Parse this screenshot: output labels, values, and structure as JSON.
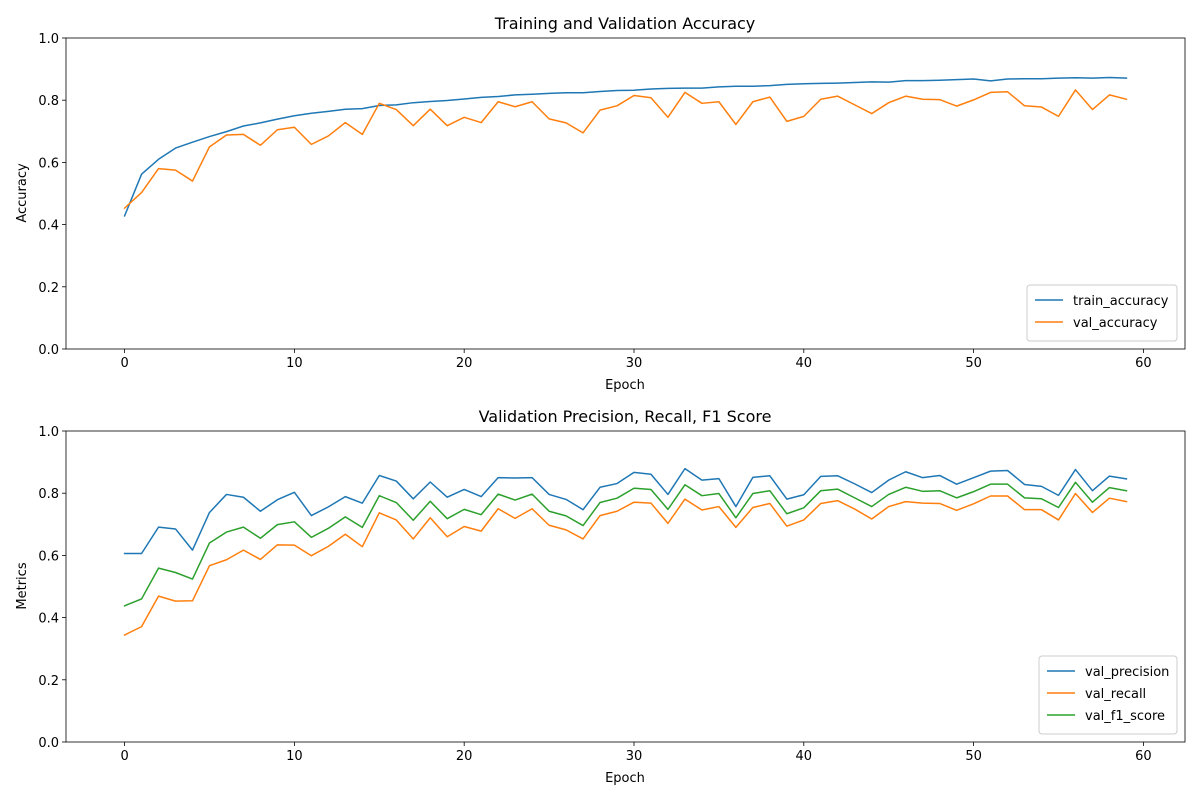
{
  "chart_data": [
    {
      "type": "line",
      "title": "Training and Validation Accuracy",
      "xlabel": "Epoch",
      "ylabel": "Accuracy",
      "xlim": [
        -3.45,
        62.45
      ],
      "ylim": [
        0,
        1.0
      ],
      "xticks": [
        0,
        10,
        20,
        30,
        40,
        50,
        60
      ],
      "yticks": [
        0.0,
        0.2,
        0.4,
        0.6,
        0.8,
        1.0
      ],
      "xtick_labels": [
        "0",
        "10",
        "20",
        "30",
        "40",
        "50",
        "60"
      ],
      "ytick_labels": [
        "0.0",
        "0.2",
        "0.4",
        "0.6",
        "0.8",
        "1.0"
      ],
      "grid": false,
      "legend": "lower right",
      "x": [
        0,
        1,
        2,
        3,
        4,
        5,
        6,
        7,
        8,
        9,
        10,
        11,
        12,
        13,
        14,
        15,
        16,
        17,
        18,
        19,
        20,
        21,
        22,
        23,
        24,
        25,
        26,
        27,
        28,
        29,
        30,
        31,
        32,
        33,
        34,
        35,
        36,
        37,
        38,
        39,
        40,
        41,
        42,
        43,
        44,
        45,
        46,
        47,
        48,
        49,
        50,
        51,
        52,
        53,
        54,
        55,
        56,
        57,
        58,
        59
      ],
      "series": [
        {
          "name": "train_accuracy",
          "color": "#1f77b4",
          "values": [
            0.428,
            0.562,
            0.61,
            0.646,
            0.665,
            0.683,
            0.699,
            0.717,
            0.727,
            0.739,
            0.75,
            0.758,
            0.764,
            0.771,
            0.773,
            0.783,
            0.785,
            0.792,
            0.796,
            0.799,
            0.804,
            0.809,
            0.812,
            0.817,
            0.819,
            0.822,
            0.824,
            0.824,
            0.828,
            0.831,
            0.832,
            0.836,
            0.838,
            0.839,
            0.839,
            0.843,
            0.845,
            0.845,
            0.847,
            0.851,
            0.853,
            0.854,
            0.855,
            0.857,
            0.859,
            0.858,
            0.863,
            0.863,
            0.864,
            0.866,
            0.868,
            0.862,
            0.868,
            0.869,
            0.869,
            0.871,
            0.872,
            0.871,
            0.873,
            0.871
          ]
        },
        {
          "name": "val_accuracy",
          "color": "#ff7f0e",
          "values": [
            0.453,
            0.503,
            0.58,
            0.575,
            0.54,
            0.65,
            0.688,
            0.69,
            0.655,
            0.705,
            0.713,
            0.658,
            0.685,
            0.728,
            0.69,
            0.79,
            0.77,
            0.718,
            0.771,
            0.718,
            0.745,
            0.728,
            0.795,
            0.779,
            0.795,
            0.74,
            0.727,
            0.695,
            0.768,
            0.782,
            0.815,
            0.808,
            0.745,
            0.825,
            0.79,
            0.795,
            0.722,
            0.795,
            0.81,
            0.732,
            0.748,
            0.803,
            0.813,
            0.785,
            0.757,
            0.792,
            0.813,
            0.803,
            0.802,
            0.781,
            0.801,
            0.825,
            0.827,
            0.782,
            0.778,
            0.748,
            0.833,
            0.77,
            0.817,
            0.803
          ]
        }
      ]
    },
    {
      "type": "line",
      "title": "Validation Precision, Recall, F1 Score",
      "xlabel": "Epoch",
      "ylabel": "Metrics",
      "xlim": [
        -3.45,
        62.45
      ],
      "ylim": [
        0,
        1.0
      ],
      "xticks": [
        0,
        10,
        20,
        30,
        40,
        50,
        60
      ],
      "yticks": [
        0.0,
        0.2,
        0.4,
        0.6,
        0.8,
        1.0
      ],
      "xtick_labels": [
        "0",
        "10",
        "20",
        "30",
        "40",
        "50",
        "60"
      ],
      "ytick_labels": [
        "0.0",
        "0.2",
        "0.4",
        "0.6",
        "0.8",
        "1.0"
      ],
      "grid": false,
      "legend": "lower right",
      "x": [
        0,
        1,
        2,
        3,
        4,
        5,
        6,
        7,
        8,
        9,
        10,
        11,
        12,
        13,
        14,
        15,
        16,
        17,
        18,
        19,
        20,
        21,
        22,
        23,
        24,
        25,
        26,
        27,
        28,
        29,
        30,
        31,
        32,
        33,
        34,
        35,
        36,
        37,
        38,
        39,
        40,
        41,
        42,
        43,
        44,
        45,
        46,
        47,
        48,
        49,
        50,
        51,
        52,
        53,
        54,
        55,
        56,
        57,
        58,
        59
      ],
      "series": [
        {
          "name": "val_precision",
          "color": "#1f77b4",
          "values": [
            0.606,
            0.606,
            0.691,
            0.685,
            0.617,
            0.738,
            0.796,
            0.787,
            0.742,
            0.779,
            0.803,
            0.728,
            0.756,
            0.789,
            0.768,
            0.857,
            0.839,
            0.782,
            0.836,
            0.787,
            0.812,
            0.789,
            0.85,
            0.849,
            0.85,
            0.796,
            0.78,
            0.747,
            0.819,
            0.831,
            0.867,
            0.861,
            0.796,
            0.879,
            0.842,
            0.847,
            0.757,
            0.851,
            0.856,
            0.781,
            0.795,
            0.854,
            0.856,
            0.83,
            0.802,
            0.842,
            0.869,
            0.85,
            0.857,
            0.829,
            0.85,
            0.871,
            0.873,
            0.828,
            0.822,
            0.793,
            0.876,
            0.808,
            0.855,
            0.846
          ]
        },
        {
          "name": "val_recall",
          "color": "#ff7f0e",
          "values": [
            0.344,
            0.371,
            0.469,
            0.453,
            0.454,
            0.567,
            0.586,
            0.617,
            0.587,
            0.634,
            0.633,
            0.599,
            0.629,
            0.668,
            0.628,
            0.737,
            0.714,
            0.653,
            0.721,
            0.66,
            0.693,
            0.678,
            0.75,
            0.719,
            0.75,
            0.697,
            0.682,
            0.653,
            0.728,
            0.742,
            0.771,
            0.768,
            0.703,
            0.781,
            0.746,
            0.757,
            0.69,
            0.754,
            0.767,
            0.694,
            0.714,
            0.767,
            0.776,
            0.749,
            0.717,
            0.757,
            0.773,
            0.768,
            0.767,
            0.745,
            0.766,
            0.791,
            0.791,
            0.747,
            0.747,
            0.714,
            0.799,
            0.738,
            0.784,
            0.773
          ]
        },
        {
          "name": "val_f1_score",
          "color": "#2ca02c",
          "values": [
            0.438,
            0.46,
            0.559,
            0.545,
            0.524,
            0.64,
            0.675,
            0.691,
            0.655,
            0.699,
            0.708,
            0.658,
            0.687,
            0.724,
            0.69,
            0.792,
            0.77,
            0.713,
            0.774,
            0.718,
            0.748,
            0.731,
            0.797,
            0.778,
            0.797,
            0.742,
            0.727,
            0.696,
            0.77,
            0.784,
            0.816,
            0.812,
            0.748,
            0.827,
            0.792,
            0.799,
            0.721,
            0.799,
            0.808,
            0.734,
            0.753,
            0.808,
            0.813,
            0.785,
            0.757,
            0.796,
            0.819,
            0.806,
            0.808,
            0.785,
            0.805,
            0.829,
            0.829,
            0.785,
            0.782,
            0.754,
            0.835,
            0.771,
            0.818,
            0.808
          ]
        }
      ]
    }
  ]
}
